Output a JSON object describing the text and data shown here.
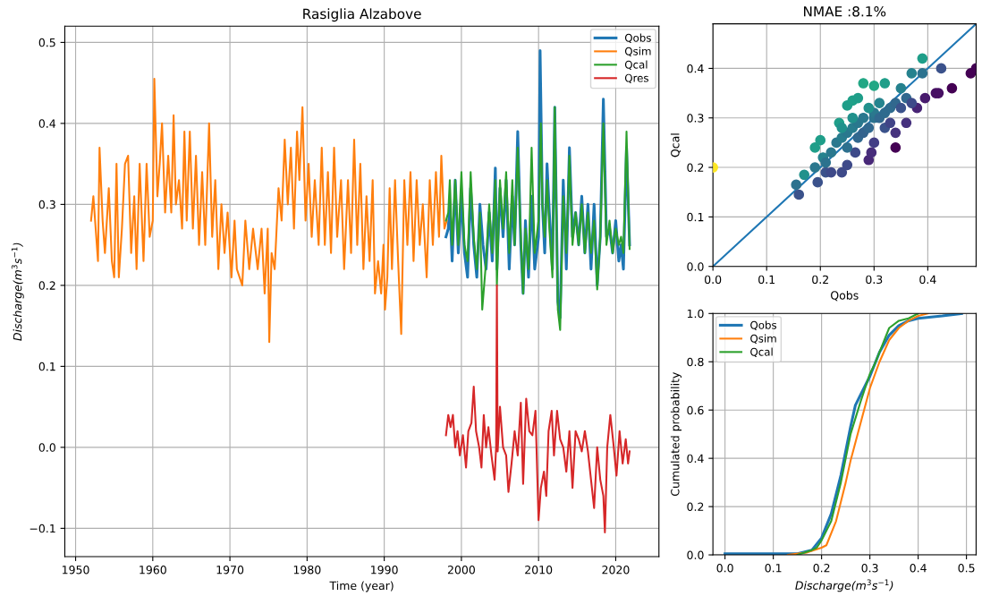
{
  "chart_data": [
    {
      "type": "line",
      "title": "Rasiglia Alzabove",
      "xlabel": "Time (year)",
      "ylabel": "Discharge(m$^{3}$s$^{−1}$)",
      "xlim": [
        1948.6,
        2025.6
      ],
      "xticks": [
        1950,
        1960,
        1970,
        1980,
        1990,
        2000,
        2010,
        2020
      ],
      "ylim": [
        -0.135,
        0.52
      ],
      "yticks": [
        {
          "value": -0.1,
          "label": "−0.1"
        },
        {
          "value": 0,
          "label": "0.0"
        },
        0.1,
        0.2,
        0.3,
        0.4,
        0.5
      ],
      "grid": true,
      "legend": "top right",
      "series": [
        {
          "name": "Qobs",
          "color": "#1f77b4",
          "x": [
            1998.0,
            1998.3,
            1998.5,
            1998.8,
            1999.2,
            1999.6,
            2000.0,
            2000.4,
            2000.8,
            2001.2,
            2001.6,
            2002.0,
            2002.4,
            2002.8,
            2003.2,
            2003.6,
            2004.0,
            2004.4,
            2004.6,
            2005.0,
            2005.4,
            2005.8,
            2006.2,
            2006.6,
            2006.9,
            2007.3,
            2007.7,
            2008.0,
            2008.3,
            2008.7,
            2009.1,
            2009.5,
            2010.0,
            2010.2,
            2010.5,
            2010.8,
            2011.1,
            2011.4,
            2011.8,
            2012.1,
            2012.5,
            2012.8,
            2013.2,
            2013.6,
            2014.0,
            2014.4,
            2014.8,
            2015.2,
            2015.6,
            2016.0,
            2016.4,
            2016.8,
            2017.2,
            2017.6,
            2018.0,
            2018.4,
            2018.8,
            2019.2,
            2019.6,
            2020.0,
            2020.4,
            2020.7,
            2021.0,
            2021.4,
            2021.8
          ],
          "values": [
            0.26,
            0.27,
            0.3,
            0.23,
            0.33,
            0.24,
            0.31,
            0.24,
            0.21,
            0.32,
            0.25,
            0.21,
            0.3,
            0.25,
            0.22,
            0.29,
            0.23,
            0.345,
            0.22,
            0.32,
            0.26,
            0.33,
            0.22,
            0.31,
            0.25,
            0.39,
            0.25,
            0.19,
            0.28,
            0.21,
            0.31,
            0.22,
            0.26,
            0.49,
            0.3,
            0.24,
            0.35,
            0.29,
            0.22,
            0.42,
            0.18,
            0.16,
            0.33,
            0.22,
            0.37,
            0.26,
            0.29,
            0.25,
            0.31,
            0.24,
            0.3,
            0.22,
            0.3,
            0.2,
            0.26,
            0.43,
            0.26,
            0.27,
            0.24,
            0.28,
            0.23,
            0.25,
            0.22,
            0.37,
            0.25
          ]
        },
        {
          "name": "Qsim",
          "color": "#ff7f0e",
          "x": [
            1952.0,
            1952.3,
            1952.6,
            1952.9,
            1953.1,
            1953.5,
            1953.8,
            1954.3,
            1954.7,
            1955.0,
            1955.3,
            1955.6,
            1956.0,
            1956.4,
            1956.8,
            1957.2,
            1957.6,
            1957.9,
            1958.3,
            1958.8,
            1959.2,
            1959.6,
            1960.0,
            1960.2,
            1960.6,
            1960.9,
            1961.2,
            1961.6,
            1962.0,
            1962.4,
            1962.7,
            1963.0,
            1963.4,
            1963.8,
            1964.1,
            1964.4,
            1964.8,
            1965.2,
            1965.6,
            1966.0,
            1966.4,
            1966.8,
            1967.3,
            1967.7,
            1968.1,
            1968.5,
            1968.9,
            1969.3,
            1969.7,
            1970.2,
            1970.6,
            1970.9,
            1971.6,
            1972.0,
            1972.5,
            1973.0,
            1973.6,
            1974.1,
            1974.5,
            1974.9,
            1975.1,
            1975.4,
            1975.8,
            1976.3,
            1976.7,
            1977.1,
            1977.5,
            1977.9,
            1978.3,
            1978.7,
            1979.0,
            1979.4,
            1979.8,
            1980.2,
            1980.6,
            1981.0,
            1981.5,
            1981.9,
            1982.3,
            1982.7,
            1983.1,
            1983.5,
            1983.9,
            1984.4,
            1984.8,
            1985.3,
            1985.7,
            1986.1,
            1986.5,
            1986.9,
            1987.3,
            1987.7,
            1988.1,
            1988.5,
            1988.8,
            1989.2,
            1989.6,
            1989.9,
            1990.1,
            1990.4,
            1990.7,
            1991.0,
            1991.4,
            1991.8,
            1992.2,
            1992.6,
            1993.0,
            1993.4,
            1993.8,
            1994.2,
            1994.6,
            1995.0,
            1995.5,
            1995.9,
            1996.3,
            1996.7,
            1997.1,
            1997.4,
            1997.8,
            1998.1
          ],
          "values": [
            0.28,
            0.31,
            0.27,
            0.23,
            0.37,
            0.28,
            0.24,
            0.32,
            0.23,
            0.21,
            0.35,
            0.21,
            0.27,
            0.35,
            0.36,
            0.24,
            0.31,
            0.22,
            0.35,
            0.23,
            0.35,
            0.26,
            0.28,
            0.455,
            0.31,
            0.35,
            0.4,
            0.29,
            0.36,
            0.29,
            0.41,
            0.3,
            0.33,
            0.27,
            0.39,
            0.28,
            0.39,
            0.27,
            0.36,
            0.25,
            0.34,
            0.25,
            0.4,
            0.26,
            0.33,
            0.22,
            0.3,
            0.24,
            0.29,
            0.21,
            0.28,
            0.22,
            0.2,
            0.28,
            0.22,
            0.27,
            0.22,
            0.27,
            0.19,
            0.27,
            0.13,
            0.24,
            0.22,
            0.32,
            0.28,
            0.38,
            0.3,
            0.37,
            0.27,
            0.39,
            0.33,
            0.42,
            0.28,
            0.35,
            0.26,
            0.33,
            0.25,
            0.37,
            0.25,
            0.34,
            0.24,
            0.37,
            0.26,
            0.33,
            0.22,
            0.33,
            0.24,
            0.38,
            0.25,
            0.35,
            0.22,
            0.31,
            0.23,
            0.33,
            0.19,
            0.23,
            0.19,
            0.25,
            0.17,
            0.21,
            0.32,
            0.22,
            0.33,
            0.23,
            0.14,
            0.33,
            0.25,
            0.34,
            0.23,
            0.33,
            0.25,
            0.3,
            0.21,
            0.33,
            0.25,
            0.34,
            0.26,
            0.36,
            0.27,
            0.28
          ]
        },
        {
          "name": "Qcal",
          "color": "#2ca02c",
          "x": [
            1998.0,
            1998.3,
            1998.5,
            1998.8,
            1999.2,
            1999.6,
            2000.0,
            2000.4,
            2000.8,
            2001.2,
            2001.6,
            2002.0,
            2002.4,
            2002.7,
            2003.2,
            2003.6,
            2004.0,
            2004.4,
            2004.6,
            2005.0,
            2005.4,
            2005.8,
            2006.2,
            2006.6,
            2006.9,
            2007.3,
            2007.7,
            2008.0,
            2008.3,
            2008.7,
            2009.1,
            2009.5,
            2010.0,
            2010.3,
            2010.5,
            2010.8,
            2011.1,
            2011.4,
            2011.8,
            2012.1,
            2012.5,
            2012.8,
            2013.2,
            2013.6,
            2014.0,
            2014.4,
            2014.8,
            2015.2,
            2015.6,
            2016.0,
            2016.4,
            2016.8,
            2017.2,
            2017.6,
            2018.0,
            2018.4,
            2018.8,
            2019.2,
            2019.6,
            2020.0,
            2020.4,
            2020.7,
            2021.0,
            2021.4,
            2021.8
          ],
          "values": [
            0.28,
            0.29,
            0.33,
            0.25,
            0.33,
            0.25,
            0.34,
            0.25,
            0.23,
            0.34,
            0.26,
            0.22,
            0.29,
            0.17,
            0.23,
            0.3,
            0.24,
            0.33,
            0.2,
            0.33,
            0.27,
            0.34,
            0.24,
            0.33,
            0.25,
            0.37,
            0.26,
            0.19,
            0.27,
            0.22,
            0.37,
            0.24,
            0.28,
            0.4,
            0.3,
            0.26,
            0.33,
            0.27,
            0.21,
            0.42,
            0.17,
            0.145,
            0.31,
            0.24,
            0.36,
            0.25,
            0.29,
            0.25,
            0.3,
            0.24,
            0.29,
            0.24,
            0.28,
            0.195,
            0.26,
            0.4,
            0.25,
            0.28,
            0.24,
            0.27,
            0.25,
            0.26,
            0.24,
            0.39,
            0.245
          ]
        },
        {
          "name": "Qres",
          "color": "#d62728",
          "x": [
            1998.0,
            1998.3,
            1998.6,
            1998.9,
            1999.2,
            1999.5,
            1999.8,
            2000.2,
            2000.6,
            2000.9,
            2001.3,
            2001.6,
            2001.9,
            2002.3,
            2002.6,
            2002.9,
            2003.2,
            2003.5,
            2003.9,
            2004.3,
            2004.5,
            2004.6,
            2004.7,
            2005.0,
            2005.4,
            2005.8,
            2006.1,
            2006.5,
            2006.9,
            2007.3,
            2007.7,
            2008.0,
            2008.4,
            2008.8,
            2009.2,
            2009.6,
            2010.0,
            2010.3,
            2010.7,
            2011.0,
            2011.3,
            2011.7,
            2012.0,
            2012.4,
            2012.8,
            2013.2,
            2013.6,
            2014.0,
            2014.4,
            2014.8,
            2015.2,
            2015.6,
            2016.0,
            2016.4,
            2016.8,
            2017.2,
            2017.6,
            2018.0,
            2018.4,
            2018.6,
            2018.9,
            2019.3,
            2019.7,
            2020.1,
            2020.5,
            2020.9,
            2021.3,
            2021.6,
            2021.8
          ],
          "values": [
            0.015,
            0.04,
            0.025,
            0.04,
            0.0,
            0.02,
            -0.01,
            0.015,
            -0.025,
            0.02,
            0.03,
            0.075,
            0.02,
            0.0,
            -0.025,
            0.04,
            0.0,
            0.025,
            -0.01,
            -0.04,
            0.0,
            0.2,
            -0.005,
            0.05,
            0.0,
            -0.01,
            -0.055,
            -0.02,
            0.02,
            -0.01,
            0.055,
            -0.045,
            0.06,
            0.02,
            0.015,
            0.045,
            -0.09,
            -0.05,
            -0.03,
            -0.06,
            0.02,
            0.045,
            -0.01,
            0.045,
            0.01,
            0.0,
            -0.03,
            0.02,
            -0.05,
            0.02,
            0.01,
            -0.005,
            0.02,
            -0.005,
            -0.04,
            -0.075,
            0.0,
            -0.04,
            -0.06,
            -0.105,
            0.0,
            0.04,
            0.005,
            -0.035,
            0.02,
            -0.02,
            0.01,
            -0.02,
            -0.005
          ]
        }
      ]
    },
    {
      "type": "scatter",
      "title": "NMAE :8.1%",
      "xlabel": "Qobs",
      "ylabel": "Qcal",
      "xlim": [
        0,
        0.49
      ],
      "xticks": [
        {
          "value": 0,
          "label": "0.0"
        },
        0.1,
        0.2,
        0.3,
        0.4
      ],
      "ylim": [
        0,
        0.49
      ],
      "yticks": [
        {
          "value": 0,
          "label": "0.0"
        },
        0.1,
        0.2,
        0.3,
        0.4
      ],
      "grid": true,
      "series": [
        {
          "marker": "circle",
          "x": [
            0.0,
            0.155,
            0.16,
            0.17,
            0.19,
            0.195,
            0.2,
            0.205,
            0.21,
            0.22,
            0.235,
            0.24,
            0.25,
            0.25,
            0.26,
            0.27,
            0.28,
            0.265,
            0.29,
            0.295,
            0.3,
            0.3,
            0.32,
            0.34,
            0.34,
            0.35,
            0.36,
            0.37,
            0.38,
            0.39,
            0.39,
            0.395,
            0.415,
            0.42,
            0.425,
            0.445,
            0.48,
            0.49,
            0.22,
            0.23,
            0.24,
            0.25,
            0.25,
            0.26,
            0.27,
            0.27,
            0.28,
            0.28,
            0.29,
            0.3,
            0.3,
            0.31,
            0.32,
            0.32,
            0.33,
            0.34,
            0.35,
            0.33,
            0.36,
            0.37,
            0.31,
            0.29,
            0.26,
            0.24,
            0.21,
            0.19
          ],
          "values": [
            0.2,
            0.165,
            0.145,
            0.185,
            0.24,
            0.17,
            0.255,
            0.22,
            0.19,
            0.19,
            0.29,
            0.19,
            0.325,
            0.205,
            0.335,
            0.34,
            0.37,
            0.23,
            0.215,
            0.23,
            0.365,
            0.25,
            0.37,
            0.24,
            0.27,
            0.36,
            0.29,
            0.39,
            0.32,
            0.42,
            0.39,
            0.34,
            0.35,
            0.35,
            0.4,
            0.36,
            0.39,
            0.4,
            0.23,
            0.25,
            0.26,
            0.27,
            0.24,
            0.28,
            0.29,
            0.26,
            0.3,
            0.27,
            0.28,
            0.3,
            0.31,
            0.3,
            0.31,
            0.28,
            0.32,
            0.33,
            0.32,
            0.29,
            0.34,
            0.33,
            0.33,
            0.32,
            0.3,
            0.28,
            0.21,
            0.2
          ],
          "colors": [
            "#fde725",
            "#2c728e",
            "#3b528b",
            "#21918c",
            "#1f9e89",
            "#3b528b",
            "#1f9e89",
            "#26828e",
            "#3b528b",
            "#3e4a89",
            "#1f9e89",
            "#3e4a89",
            "#1f9e89",
            "#3e4a89",
            "#1fa088",
            "#1f9e89",
            "#22a785",
            "#3e4a89",
            "#482878",
            "#472d7b",
            "#22a785",
            "#433e85",
            "#1f9e89",
            "#440154",
            "#46337e",
            "#26828e",
            "#46327e",
            "#26828e",
            "#482475",
            "#1f9e89",
            "#2c728e",
            "#481b6d",
            "#471063",
            "#471063",
            "#3b528b",
            "#440154",
            "#440154",
            "#440154",
            "#2a788e",
            "#2a788e",
            "#287d8e",
            "#2a788e",
            "#2d708e",
            "#287d8e",
            "#2a788e",
            "#31688e",
            "#2a788e",
            "#33638d",
            "#31688e",
            "#2c728e",
            "#2a788e",
            "#31688e",
            "#2f6b8e",
            "#3b528b",
            "#2f6b8e",
            "#31688e",
            "#3b528b",
            "#414487",
            "#31688e",
            "#3e4a89",
            "#25848e",
            "#21918c",
            "#21918c",
            "#21918c",
            "#2c728e",
            "#2a788e"
          ]
        },
        {
          "type": "line",
          "color": "#1f77b4",
          "x": [
            0,
            0.49
          ],
          "values": [
            0,
            0.49
          ]
        }
      ]
    },
    {
      "type": "line",
      "xlabel": "Discharge(m$^{3}$s$^{−1}$)",
      "ylabel": "Cumulated probability",
      "xlim": [
        -0.025,
        0.52
      ],
      "xticks": [
        {
          "value": 0,
          "label": "0.0"
        },
        0.1,
        0.2,
        0.3,
        0.4,
        0.5
      ],
      "ylim": [
        0,
        1
      ],
      "yticks": [
        {
          "value": 0,
          "label": "0.0"
        },
        0.2,
        0.4,
        0.6,
        0.8,
        {
          "value": 1,
          "label": "1.0"
        }
      ],
      "grid": true,
      "legend": "top left",
      "series": [
        {
          "name": "Qobs",
          "color": "#1f77b4",
          "x": [
            0.0,
            0.15,
            0.18,
            0.2,
            0.22,
            0.24,
            0.26,
            0.27,
            0.28,
            0.3,
            0.32,
            0.34,
            0.36,
            0.38,
            0.4,
            0.45,
            0.49
          ],
          "values": [
            0.005,
            0.005,
            0.02,
            0.07,
            0.17,
            0.33,
            0.53,
            0.62,
            0.66,
            0.74,
            0.84,
            0.91,
            0.95,
            0.97,
            0.98,
            0.99,
            1.0
          ]
        },
        {
          "name": "Qsim",
          "color": "#ff7f0e",
          "x": [
            0.13,
            0.17,
            0.2,
            0.21,
            0.23,
            0.25,
            0.26,
            0.28,
            0.3,
            0.32,
            0.34,
            0.36,
            0.38,
            0.4,
            0.42
          ],
          "values": [
            0.0,
            0.01,
            0.03,
            0.04,
            0.14,
            0.3,
            0.39,
            0.54,
            0.69,
            0.8,
            0.89,
            0.94,
            0.97,
            0.99,
            1.0
          ]
        },
        {
          "name": "Qcal",
          "color": "#2ca02c",
          "x": [
            0.15,
            0.18,
            0.19,
            0.2,
            0.22,
            0.24,
            0.26,
            0.28,
            0.3,
            0.31,
            0.32,
            0.34,
            0.36,
            0.38,
            0.4
          ],
          "values": [
            0.0,
            0.02,
            0.03,
            0.06,
            0.14,
            0.3,
            0.5,
            0.63,
            0.75,
            0.79,
            0.84,
            0.94,
            0.97,
            0.98,
            1.0
          ]
        }
      ]
    }
  ]
}
